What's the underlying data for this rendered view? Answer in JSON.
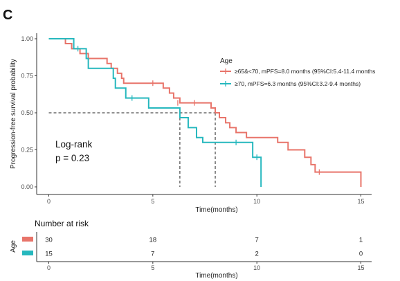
{
  "panel_label": "C",
  "chart_data": {
    "type": "line",
    "subtype": "kaplan-meier",
    "xlabel": "Time(months)",
    "ylabel": "Progression-free survival probability",
    "xlim": [
      0,
      15.5
    ],
    "ylim": [
      0,
      1.04
    ],
    "xticks": [
      0,
      5,
      10,
      15
    ],
    "yticks": [
      0,
      0.25,
      0.5,
      0.75,
      1.0
    ],
    "ytick_labels": [
      "0.00",
      "0.25",
      "0.50",
      "0.75",
      "1.00"
    ],
    "grid": false,
    "legend": {
      "title": "Age",
      "placement": "top-right"
    },
    "annotation": {
      "line1": "Log-rank",
      "line2": "p = 0.23"
    },
    "median_line_y": 0.5,
    "series": [
      {
        "name": "≥65&<70, mPFS=8.0 months (95%CI:5.4-11.4 months",
        "color": "#E8746A",
        "median": 8.0,
        "steps": [
          [
            0,
            1.0
          ],
          [
            0.8,
            0.967
          ],
          [
            1.1,
            0.933
          ],
          [
            1.5,
            0.9
          ],
          [
            1.9,
            0.867
          ],
          [
            2.8,
            0.833
          ],
          [
            3.0,
            0.8
          ],
          [
            3.3,
            0.767
          ],
          [
            3.5,
            0.733
          ],
          [
            3.6,
            0.7
          ],
          [
            5.5,
            0.667
          ],
          [
            5.8,
            0.633
          ],
          [
            6.0,
            0.6
          ],
          [
            6.3,
            0.567
          ],
          [
            7.8,
            0.533
          ],
          [
            8.0,
            0.5
          ],
          [
            8.2,
            0.467
          ],
          [
            8.5,
            0.433
          ],
          [
            8.7,
            0.4
          ],
          [
            9.0,
            0.367
          ],
          [
            9.5,
            0.333
          ],
          [
            11.0,
            0.3
          ],
          [
            11.5,
            0.25
          ],
          [
            12.3,
            0.2
          ],
          [
            12.6,
            0.15
          ],
          [
            12.8,
            0.1
          ],
          [
            15.0,
            0.0
          ]
        ],
        "censored": [
          [
            1.9,
            0.867
          ],
          [
            5.0,
            0.7
          ],
          [
            6.2,
            0.567
          ],
          [
            7.0,
            0.567
          ],
          [
            13.0,
            0.1
          ]
        ]
      },
      {
        "name": "≥70, mPFS=6.3 months (95%CI:3.2-9.4 months)",
        "color": "#26B8BE",
        "median": 6.3,
        "steps": [
          [
            0,
            1.0
          ],
          [
            1.2,
            0.933
          ],
          [
            1.8,
            0.867
          ],
          [
            1.9,
            0.8
          ],
          [
            3.1,
            0.733
          ],
          [
            3.2,
            0.667
          ],
          [
            3.7,
            0.6
          ],
          [
            4.8,
            0.533
          ],
          [
            6.3,
            0.467
          ],
          [
            6.7,
            0.4
          ],
          [
            7.1,
            0.333
          ],
          [
            7.4,
            0.3
          ],
          [
            9.8,
            0.2
          ],
          [
            10.2,
            0.0
          ]
        ],
        "censored": [
          [
            1.4,
            0.933
          ],
          [
            4.0,
            0.6
          ],
          [
            9.0,
            0.3
          ],
          [
            10.0,
            0.2
          ]
        ]
      }
    ]
  },
  "risk_table": {
    "title": "Number at risk",
    "ylabel": "Age",
    "xlabel": "Time(months)",
    "times": [
      0,
      5,
      10,
      15
    ],
    "rows": [
      {
        "color": "#E8746A",
        "counts": [
          30,
          18,
          7,
          1
        ]
      },
      {
        "color": "#26B8BE",
        "counts": [
          15,
          7,
          2,
          0
        ]
      }
    ]
  }
}
